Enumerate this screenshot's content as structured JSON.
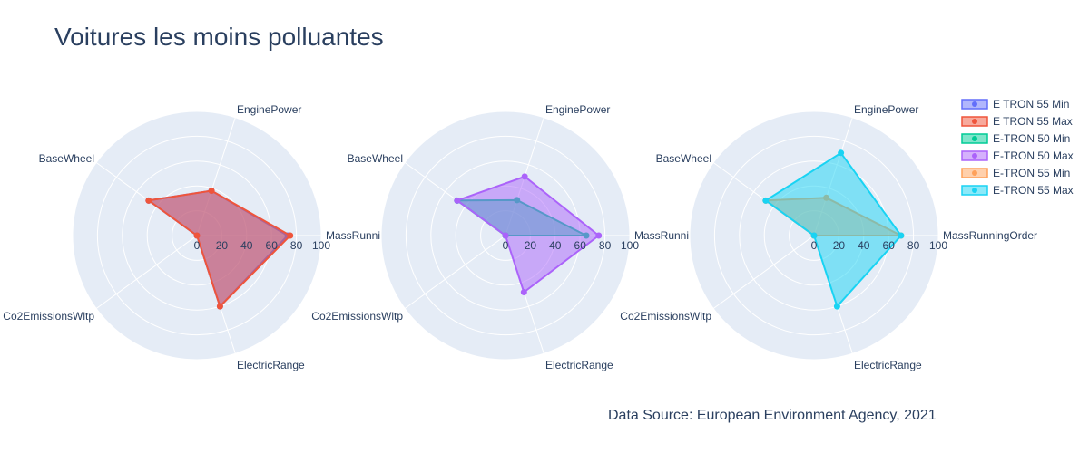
{
  "title": "Voitures les moins polluantes",
  "source": "Data Source: European Environment Agency, 2021",
  "chart_data": {
    "type": "radar",
    "title": "Voitures les moins polluantes",
    "axes": [
      "MassRunningOrder",
      "EngineePower",
      "BaseWheel",
      "Co2EmissionsWltp",
      "ElectricRange"
    ],
    "axis_display": [
      [
        "MassRunni",
        "EnginePower",
        "BaseWheel",
        "Co2EmissionsWltp",
        "ElectricRange"
      ],
      [
        "MassRunni",
        "EnginePower",
        "BaseWheel",
        "Co2EmissionsWltp",
        "ElectricRange"
      ],
      [
        "MassRunningOrder",
        "EnginePower",
        "BaseWheel",
        "Co2EmissionsWltp",
        "ElectricRange"
      ]
    ],
    "radial_range": [
      0,
      100
    ],
    "radial_ticks": [
      0,
      20,
      40,
      60,
      80,
      100
    ],
    "colors": [
      "#636efa",
      "#EF553B",
      "#00cc96",
      "#ab63fa",
      "#FFA15A",
      "#19d3f3"
    ],
    "legend": [
      "E TRON 55 Min",
      "E TRON 55 Max",
      "E-TRON 50 Min",
      "E-TRON 50 Max",
      "E-TRON 55 Min",
      "E-TRON 55 Max"
    ],
    "polars": [
      {
        "series": [
          {
            "name": "E TRON 55 Min",
            "color_index": 0,
            "values": [
              73,
              38,
              48,
              0,
              60
            ]
          },
          {
            "name": "E TRON 55 Max",
            "color_index": 1,
            "values": [
              75,
              38,
              48,
              0,
              60
            ]
          }
        ]
      },
      {
        "series": [
          {
            "name": "E-TRON 50 Min",
            "color_index": 2,
            "values": [
              65,
              30,
              48,
              0,
              0
            ]
          },
          {
            "name": "E-TRON 50 Max",
            "color_index": 3,
            "values": [
              75,
              50,
              48,
              0,
              48
            ]
          }
        ]
      },
      {
        "series": [
          {
            "name": "E-TRON 55 Min",
            "color_index": 4,
            "values": [
              70,
              32,
              48,
              0,
              0
            ]
          },
          {
            "name": "E-TRON 55 Max",
            "color_index": 5,
            "values": [
              70,
              70,
              48,
              0,
              60
            ]
          }
        ]
      }
    ]
  }
}
